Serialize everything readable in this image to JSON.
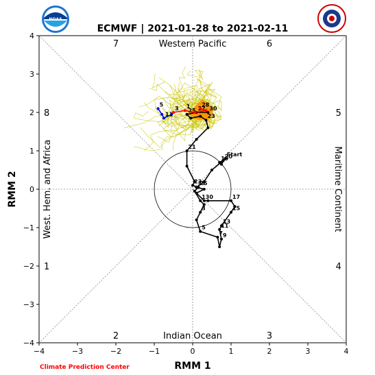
{
  "chart_data": {
    "type": "line",
    "title": "ECMWF | 2021-01-28 to 2021-02-11",
    "xlabel": "RMM 1",
    "ylabel": "RMM 2",
    "xlim": [
      -4,
      4
    ],
    "ylim": [
      -4,
      4
    ],
    "x_ticks": [
      "−4",
      "−3",
      "−2",
      "−1",
      "0",
      "1",
      "2",
      "3",
      "4"
    ],
    "y_ticks": [
      "−4",
      "−3",
      "−2",
      "−1",
      "0",
      "1",
      "2",
      "3",
      "4"
    ],
    "phase_numbers": [
      {
        "label": "1",
        "x": -3.8,
        "y": -2.0
      },
      {
        "label": "2",
        "x": -2.0,
        "y": -3.8
      },
      {
        "label": "3",
        "x": 2.0,
        "y": -3.8
      },
      {
        "label": "4",
        "x": 3.8,
        "y": -2.0
      },
      {
        "label": "5",
        "x": 3.8,
        "y": 2.0
      },
      {
        "label": "6",
        "x": 2.0,
        "y": 3.8
      },
      {
        "label": "7",
        "x": -2.0,
        "y": 3.8
      },
      {
        "label": "8",
        "x": -3.8,
        "y": 2.0
      }
    ],
    "region_labels": {
      "top": "Western Pacific",
      "bottom": "Indian Ocean",
      "left": "West. Hem. and Africa",
      "right": "Maritime Continent"
    },
    "unit_circle_radius": 1,
    "grid": false,
    "series": [
      {
        "color": "#000000",
        "points": [
          {
            "x": 0.85,
            "y": 0.8,
            "label": "Start"
          },
          {
            "x": 0.75,
            "y": 0.65
          },
          {
            "x": 0.7,
            "y": 0.7,
            "label": "19"
          },
          {
            "x": 0.8,
            "y": 0.75,
            "label": "20"
          },
          {
            "x": 0.5,
            "y": 0.5
          },
          {
            "x": 0.3,
            "y": 0.2
          },
          {
            "x": 0.1,
            "y": 0.05,
            "label": "19"
          },
          {
            "x": 0.3,
            "y": 0.0
          },
          {
            "x": 0.1,
            "y": -0.1
          },
          {
            "x": 0.3,
            "y": -0.3,
            "label": "30"
          },
          {
            "x": 0.4,
            "y": -0.3
          },
          {
            "x": 1.0,
            "y": -0.3,
            "label": "17"
          },
          {
            "x": 1.1,
            "y": -0.45
          },
          {
            "x": 1.0,
            "y": -0.6,
            "label": "15"
          },
          {
            "x": 0.75,
            "y": -0.95,
            "label": "13"
          },
          {
            "x": 0.7,
            "y": -1.05,
            "label": "11"
          },
          {
            "x": 0.75,
            "y": -1.3,
            "label": "9"
          },
          {
            "x": 0.7,
            "y": -1.5
          },
          {
            "x": 0.65,
            "y": -1.25,
            "label": "7"
          },
          {
            "x": 0.2,
            "y": -1.1,
            "label": "5"
          },
          {
            "x": 0.1,
            "y": -0.8
          },
          {
            "x": 0.2,
            "y": -0.6,
            "label": "3"
          },
          {
            "x": 0.3,
            "y": -0.4
          },
          {
            "x": 0.2,
            "y": -0.3,
            "label": "1"
          },
          {
            "x": 0.05,
            "y": -0.05
          },
          {
            "x": 0.15,
            "y": 0.05,
            "label": "25"
          },
          {
            "x": 0.0,
            "y": 0.1,
            "label": "23"
          },
          {
            "x": 0.05,
            "y": 0.2
          },
          {
            "x": -0.15,
            "y": 0.6
          },
          {
            "x": -0.15,
            "y": 1.0,
            "label": "21"
          },
          {
            "x": 0.1,
            "y": 1.3
          },
          {
            "x": 0.4,
            "y": 1.6
          },
          {
            "x": 0.35,
            "y": 1.8,
            "label": "23"
          },
          {
            "x": 0.2,
            "y": 1.9
          },
          {
            "x": -0.05,
            "y": 1.85
          },
          {
            "x": -0.15,
            "y": 1.95,
            "label": "25"
          },
          {
            "x": 0.1,
            "y": 2.0,
            "label": "27"
          },
          {
            "x": 0.4,
            "y": 2.0,
            "label": "30"
          }
        ]
      },
      {
        "color": "#ff0000",
        "points": [
          {
            "x": 0.2,
            "y": 2.1,
            "label": "28"
          },
          {
            "x": 0.35,
            "y": 2.05
          },
          {
            "x": 0.05,
            "y": 2.0
          },
          {
            "x": -0.2,
            "y": 2.05,
            "label": "1"
          },
          {
            "x": -0.5,
            "y": 2.0,
            "label": "3"
          }
        ]
      },
      {
        "color": "#0000ff",
        "points": [
          {
            "x": -0.55,
            "y": 1.95
          },
          {
            "x": -0.75,
            "y": 1.85,
            "label": "11"
          },
          {
            "x": -0.8,
            "y": 1.95
          },
          {
            "x": -0.9,
            "y": 2.1,
            "label": "5"
          }
        ]
      }
    ],
    "ensemble_members": 50
  },
  "footer": {
    "credit": "Climate Prediction Center"
  },
  "logos": {
    "left_text": "NOAA",
    "right_text": "NATIONAL WEATHER SERVICE"
  },
  "colors": {
    "ensemble": "#c9c400",
    "forecast_fill": "#ff8c00",
    "diagonal": "#888888"
  }
}
